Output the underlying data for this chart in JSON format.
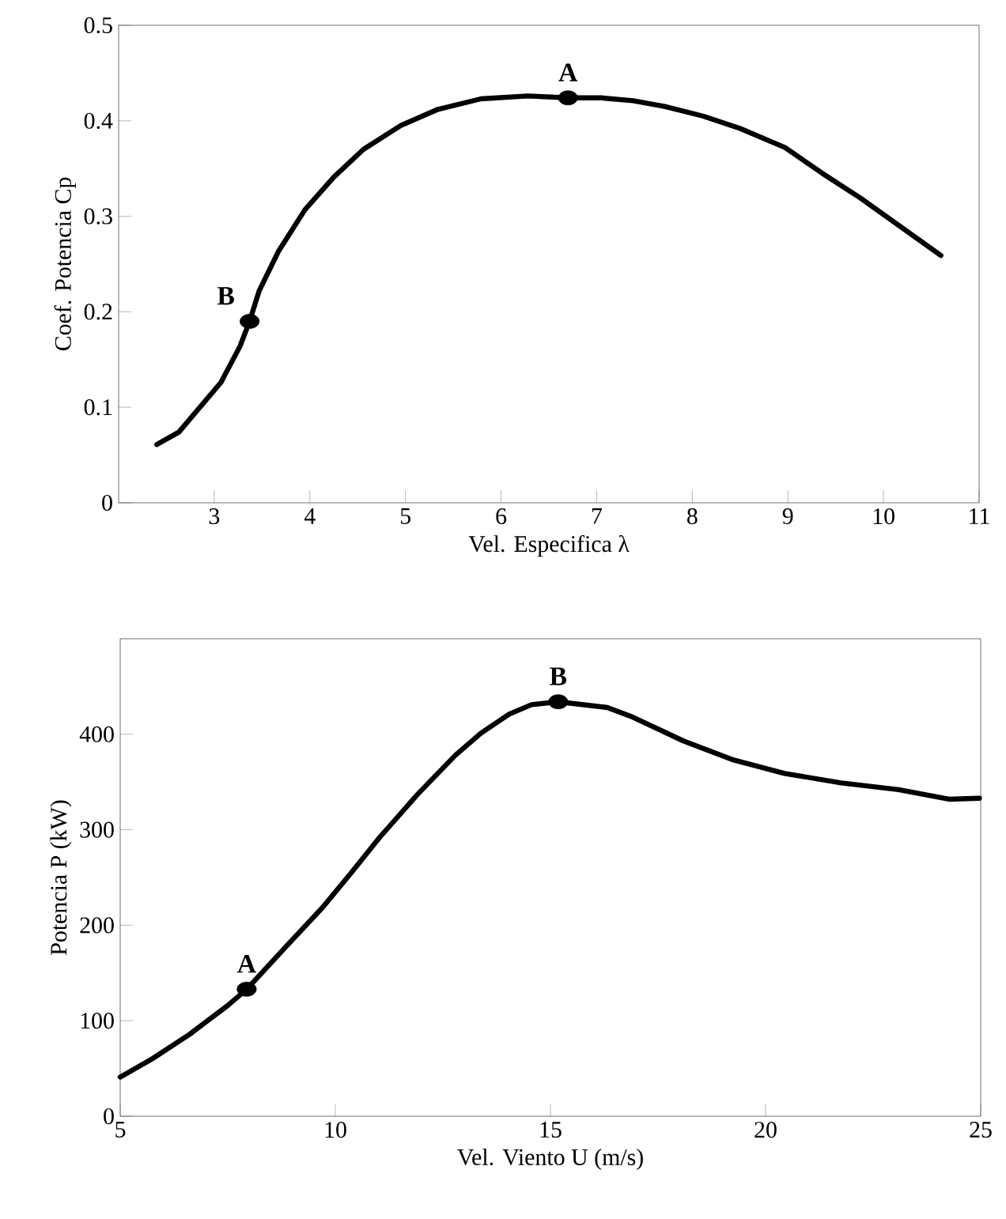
{
  "chart_data": [
    {
      "type": "line",
      "xlabel": "Vel. Especifica λ",
      "ylabel": "Coef. Potencia Cp",
      "xlim": [
        2,
        11
      ],
      "ylim": [
        0,
        0.5
      ],
      "xticks": [
        3,
        4,
        5,
        6,
        7,
        8,
        9,
        10,
        11
      ],
      "yticks": [
        0,
        0.1,
        0.2,
        0.3,
        0.4,
        0.5
      ],
      "grid": false,
      "series": [
        {
          "color": "#000000",
          "marker": "none",
          "x": [
            2.4,
            2.63,
            3.07,
            3.27,
            3.37,
            3.47,
            3.67,
            3.95,
            4.25,
            4.56,
            4.95,
            5.34,
            5.79,
            6.28,
            6.7,
            7.05,
            7.38,
            7.71,
            8.11,
            8.5,
            8.97,
            9.36,
            9.76,
            10.6
          ],
          "values": [
            0.061,
            0.074,
            0.126,
            0.164,
            0.19,
            0.222,
            0.263,
            0.307,
            0.341,
            0.37,
            0.395,
            0.412,
            0.423,
            0.426,
            0.424,
            0.424,
            0.421,
            0.415,
            0.405,
            0.392,
            0.372,
            0.345,
            0.319,
            0.259
          ]
        },
        {
          "type": "scatter",
          "color": "#000000",
          "marker": "circle",
          "x": [
            3.37,
            6.7
          ],
          "values": [
            0.19,
            0.424
          ]
        }
      ],
      "annotations": [
        {
          "text": "B",
          "x": 3.37,
          "y": 0.19
        },
        {
          "text": "A",
          "x": 6.7,
          "y": 0.424
        }
      ]
    },
    {
      "type": "line",
      "xlabel": "Vel. Viento U (m/s)",
      "ylabel": "Potencia P (kW)",
      "xlim": [
        5,
        25
      ],
      "ylim": [
        0,
        500
      ],
      "xticks": [
        5,
        10,
        15,
        20,
        25
      ],
      "yticks": [
        0,
        100,
        200,
        300,
        400
      ],
      "grid": false,
      "series": [
        {
          "color": "#000000",
          "marker": "none",
          "x": [
            5,
            5.74,
            6.62,
            7.5,
            7.94,
            8.82,
            9.71,
            10.37,
            11.03,
            11.91,
            12.79,
            13.38,
            14.04,
            14.56,
            15.18,
            16.32,
            16.91,
            18.09,
            19.26,
            20.44,
            21.76,
            23.09,
            24.26,
            24.97
          ],
          "values": [
            41,
            60,
            86,
            116,
            133,
            176,
            219,
            255,
            292,
            337,
            378,
            401,
            421,
            431,
            434,
            428,
            418,
            393,
            373,
            359,
            349,
            342,
            332,
            333
          ]
        },
        {
          "type": "scatter",
          "color": "#000000",
          "marker": "circle",
          "x": [
            7.94,
            15.18
          ],
          "values": [
            133,
            434
          ]
        }
      ],
      "annotations": [
        {
          "text": "A",
          "x": 7.94,
          "y": 133
        },
        {
          "text": "B",
          "x": 15.18,
          "y": 434
        }
      ]
    }
  ]
}
